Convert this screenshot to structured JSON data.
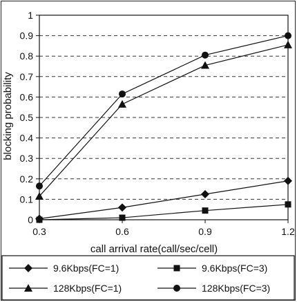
{
  "chart_data": {
    "type": "line",
    "xlabel": "call arrival rate(call/sec/cell)",
    "ylabel": "blocking probability",
    "x": [
      0.3,
      0.6,
      0.9,
      1.2
    ],
    "x_tick_labels": [
      "0.3",
      "0.6",
      "0.9",
      "1.2"
    ],
    "y_tick_labels": [
      "0",
      "0.1",
      "0.2",
      "0.3",
      "0.4",
      "0.5",
      "0.6",
      "0.7",
      "0.8",
      "0.9",
      "1"
    ],
    "xlim": [
      0.3,
      1.2
    ],
    "ylim": [
      0,
      1
    ],
    "grid": "horizontal dashed",
    "legend_position": "bottom",
    "series": [
      {
        "name": "9.6Kbps(FC=1)",
        "marker": "diamond",
        "values": [
          0.005,
          0.06,
          0.125,
          0.19
        ]
      },
      {
        "name": "9.6Kbps(FC=3)",
        "marker": "square",
        "values": [
          0.0,
          0.01,
          0.045,
          0.075
        ]
      },
      {
        "name": "128Kbps(FC=1)",
        "marker": "triangle",
        "values": [
          0.115,
          0.565,
          0.755,
          0.855
        ]
      },
      {
        "name": "128Kbps(FC=3)",
        "marker": "circle",
        "values": [
          0.165,
          0.615,
          0.805,
          0.9
        ]
      }
    ]
  }
}
